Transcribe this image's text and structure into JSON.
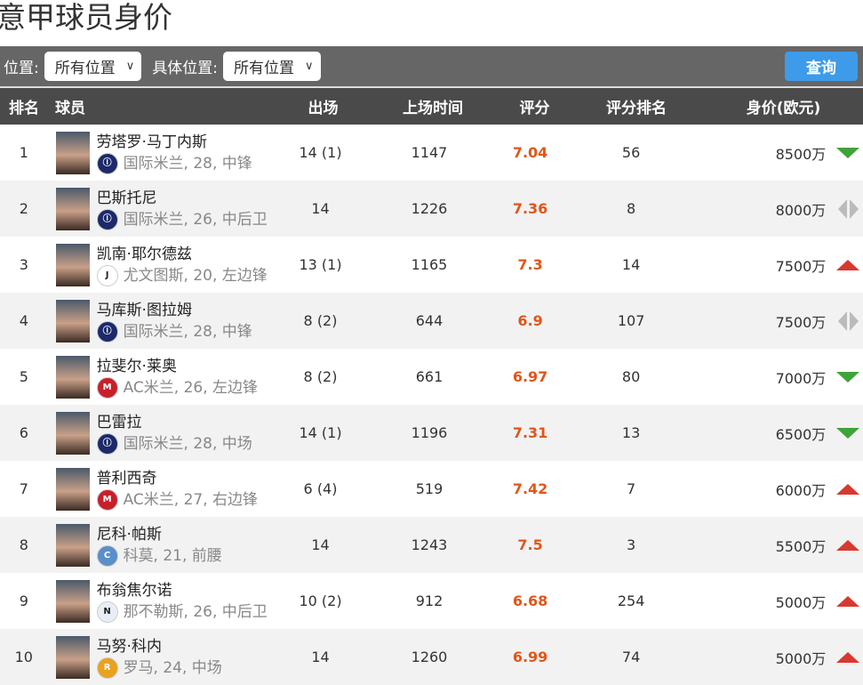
{
  "title": "意甲球员身价",
  "filters": {
    "position_label": "位置:",
    "position_value": "所有位置",
    "detail_label": "具体位置:",
    "detail_value": "所有位置",
    "query_button": "查询"
  },
  "columns": [
    "排名",
    "球员",
    "出场",
    "上场时间",
    "评分",
    "评分排名",
    "身价(欧元)"
  ],
  "colors": {
    "rating": "#e0561b",
    "up": "#d9382f",
    "down": "#3fa33a",
    "flat": "#bbbbbb",
    "toolbar": "#666666",
    "header": "#4a4a4a",
    "button": "#3d9be9"
  },
  "rows": [
    {
      "rank": "1",
      "name": "劳塔罗·马丁内斯",
      "info": "国际米兰, 28, 中锋",
      "club": "inter",
      "apps": "14 (1)",
      "minutes": "1147",
      "rating": "7.04",
      "rating_rank": "56",
      "value": "8500万",
      "trend": "down"
    },
    {
      "rank": "2",
      "name": "巴斯托尼",
      "info": "国际米兰, 26, 中后卫",
      "club": "inter",
      "apps": "14",
      "minutes": "1226",
      "rating": "7.36",
      "rating_rank": "8",
      "value": "8000万",
      "trend": "flat"
    },
    {
      "rank": "3",
      "name": "凯南·耶尔德兹",
      "info": "尤文图斯, 20, 左边锋",
      "club": "juventus",
      "apps": "13 (1)",
      "minutes": "1165",
      "rating": "7.3",
      "rating_rank": "14",
      "value": "7500万",
      "trend": "up"
    },
    {
      "rank": "4",
      "name": "马库斯·图拉姆",
      "info": "国际米兰, 28, 中锋",
      "club": "inter",
      "apps": "8 (2)",
      "minutes": "644",
      "rating": "6.9",
      "rating_rank": "107",
      "value": "7500万",
      "trend": "flat"
    },
    {
      "rank": "5",
      "name": "拉斐尔·莱奥",
      "info": "AC米兰, 26, 左边锋",
      "club": "milan",
      "apps": "8 (2)",
      "minutes": "661",
      "rating": "6.97",
      "rating_rank": "80",
      "value": "7000万",
      "trend": "down"
    },
    {
      "rank": "6",
      "name": "巴雷拉",
      "info": "国际米兰, 28, 中场",
      "club": "inter",
      "apps": "14 (1)",
      "minutes": "1196",
      "rating": "7.31",
      "rating_rank": "13",
      "value": "6500万",
      "trend": "down"
    },
    {
      "rank": "7",
      "name": "普利西奇",
      "info": "AC米兰, 27, 右边锋",
      "club": "milan",
      "apps": "6 (4)",
      "minutes": "519",
      "rating": "7.42",
      "rating_rank": "7",
      "value": "6000万",
      "trend": "up"
    },
    {
      "rank": "8",
      "name": "尼科·帕斯",
      "info": "科莫, 21, 前腰",
      "club": "como",
      "apps": "14",
      "minutes": "1243",
      "rating": "7.5",
      "rating_rank": "3",
      "value": "5500万",
      "trend": "up"
    },
    {
      "rank": "9",
      "name": "布翁焦尔诺",
      "info": "那不勒斯, 26, 中后卫",
      "club": "napoli",
      "apps": "10 (2)",
      "minutes": "912",
      "rating": "6.68",
      "rating_rank": "254",
      "value": "5000万",
      "trend": "up"
    },
    {
      "rank": "10",
      "name": "马努·科内",
      "info": "罗马, 24, 中场",
      "club": "roma",
      "apps": "14",
      "minutes": "1260",
      "rating": "6.99",
      "rating_rank": "74",
      "value": "5000万",
      "trend": "up"
    }
  ]
}
